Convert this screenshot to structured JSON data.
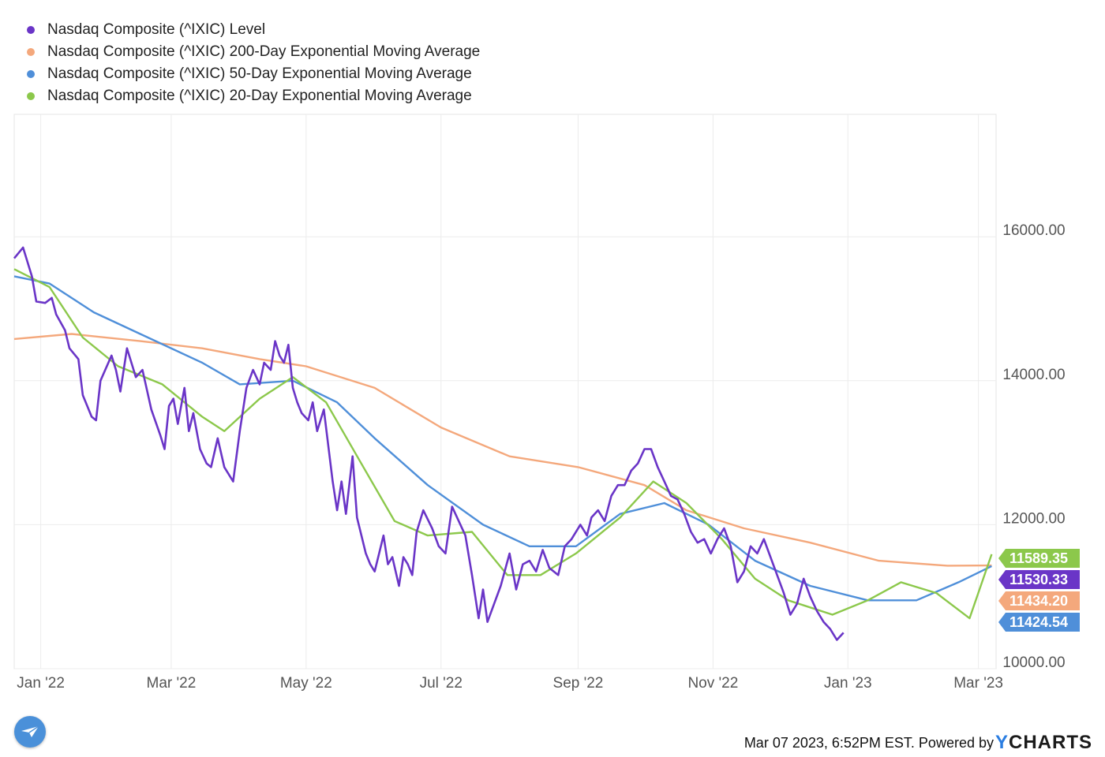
{
  "legend": [
    {
      "label": "Nasdaq Composite (^IXIC) Level",
      "color": "#6a35c7"
    },
    {
      "label": "Nasdaq Composite (^IXIC) 200-Day Exponential Moving Average",
      "color": "#f4a87c"
    },
    {
      "label": "Nasdaq Composite (^IXIC) 50-Day Exponential Moving Average",
      "color": "#4f8fd9"
    },
    {
      "label": "Nasdaq Composite (^IXIC) 20-Day Exponential Moving Average",
      "color": "#8cc84b"
    }
  ],
  "footer": {
    "timestamp": "Mar 07 2023, 6:52PM EST. Powered by",
    "brand_y": "Y",
    "brand_rest": "CHARTS"
  },
  "chart_data": {
    "type": "line",
    "title": "",
    "xlabel": "",
    "ylabel": "",
    "ylim": [
      10000,
      17700
    ],
    "xlim": [
      "2021-12-20",
      "2023-03-09"
    ],
    "grid": true,
    "legend_position": "top-left",
    "y_ticks": [
      {
        "value": 10000,
        "label": "10000.00"
      },
      {
        "value": 12000,
        "label": "12000.00"
      },
      {
        "value": 14000,
        "label": "14000.00"
      },
      {
        "value": 16000,
        "label": "16000.00"
      }
    ],
    "x_ticks": [
      {
        "date": "2022-01-01",
        "label": "Jan '22"
      },
      {
        "date": "2022-03-01",
        "label": "Mar '22"
      },
      {
        "date": "2022-05-01",
        "label": "May '22"
      },
      {
        "date": "2022-07-01",
        "label": "Jul '22"
      },
      {
        "date": "2022-09-01",
        "label": "Sep '22"
      },
      {
        "date": "2022-11-01",
        "label": "Nov '22"
      },
      {
        "date": "2023-01-01",
        "label": "Jan '23"
      },
      {
        "date": "2023-03-01",
        "label": "Mar '23"
      }
    ],
    "series": [
      {
        "name": "Nasdaq Composite (^IXIC) Level",
        "color": "#6a35c7",
        "end_label": "11530.33",
        "points": [
          [
            "2021-12-20",
            15700
          ],
          [
            "2021-12-24",
            15850
          ],
          [
            "2021-12-28",
            15450
          ],
          [
            "2021-12-30",
            15100
          ],
          [
            "2022-01-03",
            15080
          ],
          [
            "2022-01-06",
            15150
          ],
          [
            "2022-01-08",
            14920
          ],
          [
            "2022-01-12",
            14700
          ],
          [
            "2022-01-14",
            14450
          ],
          [
            "2022-01-18",
            14300
          ],
          [
            "2022-01-20",
            13800
          ],
          [
            "2022-01-24",
            13500
          ],
          [
            "2022-01-26",
            13450
          ],
          [
            "2022-01-28",
            14000
          ],
          [
            "2022-02-02",
            14350
          ],
          [
            "2022-02-04",
            14150
          ],
          [
            "2022-02-06",
            13850
          ],
          [
            "2022-02-09",
            14450
          ],
          [
            "2022-02-13",
            14050
          ],
          [
            "2022-02-16",
            14150
          ],
          [
            "2022-02-20",
            13600
          ],
          [
            "2022-02-24",
            13250
          ],
          [
            "2022-02-26",
            13050
          ],
          [
            "2022-02-28",
            13650
          ],
          [
            "2022-03-02",
            13750
          ],
          [
            "2022-03-04",
            13400
          ],
          [
            "2022-03-07",
            13900
          ],
          [
            "2022-03-09",
            13300
          ],
          [
            "2022-03-11",
            13550
          ],
          [
            "2022-03-14",
            13050
          ],
          [
            "2022-03-17",
            12850
          ],
          [
            "2022-03-19",
            12800
          ],
          [
            "2022-03-22",
            13200
          ],
          [
            "2022-03-25",
            12800
          ],
          [
            "2022-03-29",
            12600
          ],
          [
            "2022-04-01",
            13300
          ],
          [
            "2022-04-04",
            13900
          ],
          [
            "2022-04-07",
            14150
          ],
          [
            "2022-04-10",
            13950
          ],
          [
            "2022-04-12",
            14250
          ],
          [
            "2022-04-15",
            14150
          ],
          [
            "2022-04-17",
            14550
          ],
          [
            "2022-04-19",
            14350
          ],
          [
            "2022-04-21",
            14250
          ],
          [
            "2022-04-23",
            14500
          ],
          [
            "2022-04-25",
            13900
          ],
          [
            "2022-04-27",
            13700
          ],
          [
            "2022-04-29",
            13550
          ],
          [
            "2022-05-02",
            13450
          ],
          [
            "2022-05-04",
            13700
          ],
          [
            "2022-05-06",
            13300
          ],
          [
            "2022-05-09",
            13600
          ],
          [
            "2022-05-11",
            13100
          ],
          [
            "2022-05-13",
            12600
          ],
          [
            "2022-05-15",
            12200
          ],
          [
            "2022-05-17",
            12600
          ],
          [
            "2022-05-19",
            12150
          ],
          [
            "2022-05-22",
            12950
          ],
          [
            "2022-05-24",
            12100
          ],
          [
            "2022-05-26",
            11850
          ],
          [
            "2022-05-28",
            11600
          ],
          [
            "2022-05-30",
            11450
          ],
          [
            "2022-06-01",
            11350
          ],
          [
            "2022-06-03",
            11600
          ],
          [
            "2022-06-05",
            11850
          ],
          [
            "2022-06-07",
            11450
          ],
          [
            "2022-06-09",
            11550
          ],
          [
            "2022-06-12",
            11150
          ],
          [
            "2022-06-14",
            11550
          ],
          [
            "2022-06-16",
            11450
          ],
          [
            "2022-06-18",
            11300
          ],
          [
            "2022-06-20",
            11900
          ],
          [
            "2022-06-23",
            12200
          ],
          [
            "2022-06-27",
            11950
          ],
          [
            "2022-06-30",
            11700
          ],
          [
            "2022-07-03",
            11600
          ],
          [
            "2022-07-06",
            12250
          ],
          [
            "2022-07-09",
            12050
          ],
          [
            "2022-07-12",
            11850
          ],
          [
            "2022-07-15",
            11300
          ],
          [
            "2022-07-18",
            10700
          ],
          [
            "2022-07-20",
            11100
          ],
          [
            "2022-07-22",
            10650
          ],
          [
            "2022-07-25",
            10900
          ],
          [
            "2022-07-28",
            11150
          ],
          [
            "2022-08-01",
            11600
          ],
          [
            "2022-08-04",
            11100
          ],
          [
            "2022-08-07",
            11450
          ],
          [
            "2022-08-10",
            11500
          ],
          [
            "2022-08-13",
            11350
          ],
          [
            "2022-08-16",
            11650
          ],
          [
            "2022-08-19",
            11400
          ],
          [
            "2022-08-23",
            11300
          ],
          [
            "2022-08-26",
            11700
          ],
          [
            "2022-08-29",
            11800
          ],
          [
            "2022-09-02",
            12000
          ],
          [
            "2022-09-05",
            11850
          ],
          [
            "2022-09-07",
            12100
          ],
          [
            "2022-09-10",
            12200
          ],
          [
            "2022-09-13",
            12050
          ],
          [
            "2022-09-16",
            12400
          ],
          [
            "2022-09-19",
            12550
          ],
          [
            "2022-09-22",
            12550
          ],
          [
            "2022-09-25",
            12750
          ],
          [
            "2022-09-28",
            12850
          ],
          [
            "2022-10-01",
            13050
          ],
          [
            "2022-10-04",
            13050
          ],
          [
            "2022-10-07",
            12800
          ],
          [
            "2022-10-10",
            12600
          ],
          [
            "2022-10-13",
            12400
          ],
          [
            "2022-10-16",
            12350
          ],
          [
            "2022-10-19",
            12150
          ],
          [
            "2022-10-22",
            11900
          ],
          [
            "2022-10-25",
            11750
          ],
          [
            "2022-10-28",
            11800
          ],
          [
            "2022-10-31",
            11600
          ],
          [
            "2022-11-03",
            11800
          ],
          [
            "2022-11-06",
            11950
          ],
          [
            "2022-11-09",
            11700
          ],
          [
            "2022-11-12",
            11200
          ],
          [
            "2022-11-15",
            11350
          ],
          [
            "2022-11-18",
            11700
          ],
          [
            "2022-11-21",
            11600
          ],
          [
            "2022-11-24",
            11800
          ],
          [
            "2022-11-27",
            11550
          ],
          [
            "2022-11-30",
            11300
          ],
          [
            "2022-12-03",
            11050
          ],
          [
            "2022-12-06",
            10750
          ],
          [
            "2022-12-09",
            10900
          ],
          [
            "2022-12-12",
            11250
          ],
          [
            "2022-12-15",
            11000
          ],
          [
            "2022-12-18",
            10800
          ],
          [
            "2022-12-21",
            10650
          ],
          [
            "2022-12-24",
            10550
          ],
          [
            "2022-12-27",
            10400
          ],
          [
            "2022-12-30",
            10500
          ]
        ]
      },
      {
        "name": "Nasdaq Composite (^IXIC) 200-Day Exponential Moving Average",
        "color": "#f4a87c",
        "end_label": "11434.20",
        "points": [
          [
            "2021-12-20",
            14580
          ],
          [
            "2022-01-15",
            14650
          ],
          [
            "2022-02-15",
            14550
          ],
          [
            "2022-03-15",
            14450
          ],
          [
            "2022-04-10",
            14300
          ],
          [
            "2022-05-01",
            14200
          ],
          [
            "2022-06-01",
            13900
          ],
          [
            "2022-07-01",
            13350
          ],
          [
            "2022-08-01",
            12950
          ],
          [
            "2022-09-01",
            12800
          ],
          [
            "2022-10-01",
            12550
          ],
          [
            "2022-10-20",
            12200
          ],
          [
            "2022-11-15",
            11950
          ],
          [
            "2022-12-15",
            11750
          ],
          [
            "2023-01-15",
            11500
          ],
          [
            "2023-02-15",
            11430
          ],
          [
            "2023-03-07",
            11434
          ]
        ]
      },
      {
        "name": "Nasdaq Composite (^IXIC) 50-Day Exponential Moving Average",
        "color": "#4f8fd9",
        "end_label": "11424.54",
        "points": [
          [
            "2021-12-20",
            15450
          ],
          [
            "2022-01-05",
            15350
          ],
          [
            "2022-01-25",
            14950
          ],
          [
            "2022-02-15",
            14650
          ],
          [
            "2022-03-15",
            14250
          ],
          [
            "2022-04-01",
            13950
          ],
          [
            "2022-04-25",
            14000
          ],
          [
            "2022-05-15",
            13700
          ],
          [
            "2022-06-01",
            13200
          ],
          [
            "2022-06-25",
            12550
          ],
          [
            "2022-07-20",
            12000
          ],
          [
            "2022-08-10",
            11700
          ],
          [
            "2022-08-31",
            11700
          ],
          [
            "2022-09-20",
            12150
          ],
          [
            "2022-10-10",
            12300
          ],
          [
            "2022-10-30",
            12000
          ],
          [
            "2022-11-20",
            11500
          ],
          [
            "2022-12-15",
            11150
          ],
          [
            "2023-01-10",
            10950
          ],
          [
            "2023-02-01",
            10950
          ],
          [
            "2023-02-20",
            11200
          ],
          [
            "2023-03-07",
            11425
          ]
        ]
      },
      {
        "name": "Nasdaq Composite (^IXIC) 20-Day Exponential Moving Average",
        "color": "#8cc84b",
        "end_label": "11589.35",
        "points": [
          [
            "2021-12-20",
            15550
          ],
          [
            "2022-01-05",
            15300
          ],
          [
            "2022-01-20",
            14600
          ],
          [
            "2022-02-05",
            14200
          ],
          [
            "2022-02-25",
            13950
          ],
          [
            "2022-03-15",
            13500
          ],
          [
            "2022-03-25",
            13300
          ],
          [
            "2022-04-10",
            13750
          ],
          [
            "2022-04-25",
            14050
          ],
          [
            "2022-05-10",
            13700
          ],
          [
            "2022-05-25",
            12900
          ],
          [
            "2022-06-10",
            12050
          ],
          [
            "2022-06-25",
            11850
          ],
          [
            "2022-07-15",
            11900
          ],
          [
            "2022-07-31",
            11300
          ],
          [
            "2022-08-15",
            11300
          ],
          [
            "2022-08-31",
            11600
          ],
          [
            "2022-09-20",
            12100
          ],
          [
            "2022-10-05",
            12600
          ],
          [
            "2022-10-20",
            12300
          ],
          [
            "2022-11-05",
            11800
          ],
          [
            "2022-11-20",
            11250
          ],
          [
            "2022-12-05",
            10950
          ],
          [
            "2022-12-25",
            10750
          ],
          [
            "2023-01-10",
            10950
          ],
          [
            "2023-01-25",
            11200
          ],
          [
            "2023-02-10",
            11050
          ],
          [
            "2023-02-25",
            10700
          ],
          [
            "2023-03-07",
            11589
          ]
        ]
      }
    ]
  }
}
